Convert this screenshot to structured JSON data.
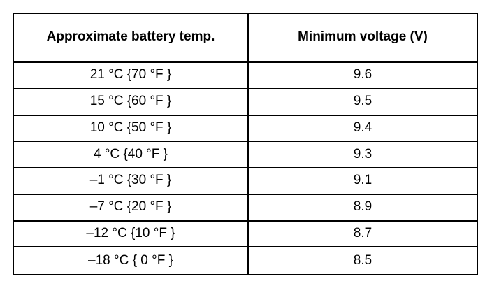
{
  "table": {
    "headers": {
      "temp": "Approximate battery temp.",
      "voltage": "Minimum voltage (V)"
    },
    "rows": [
      {
        "temp": "21 °C {70 °F }",
        "voltage": "9.6"
      },
      {
        "temp": "15 °C {60 °F }",
        "voltage": "9.5"
      },
      {
        "temp": "10 °C {50 °F }",
        "voltage": "9.4"
      },
      {
        "temp": "4 °C {40 °F }",
        "voltage": "9.3"
      },
      {
        "temp": "–1 °C {30 °F }",
        "voltage": "9.1"
      },
      {
        "temp": "–7 °C {20 °F }",
        "voltage": "8.9"
      },
      {
        "temp": "–12 °C {10 °F }",
        "voltage": "8.7"
      },
      {
        "temp": "–18 °C { 0 °F }",
        "voltage": "8.5"
      }
    ]
  }
}
